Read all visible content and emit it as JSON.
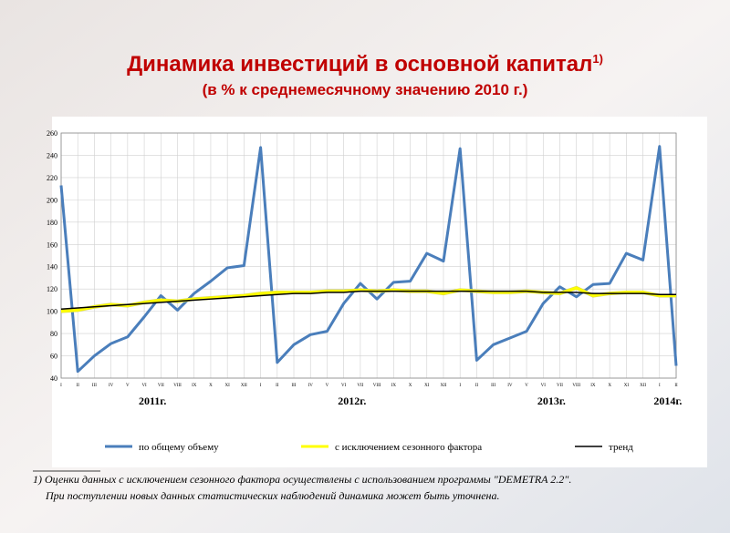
{
  "chart_data": {
    "type": "line",
    "title": "Динамика инвестиций в основной капитал",
    "title_note": "1)",
    "subtitle": "(в % к среднемесячному значению 2010 г.)",
    "categories": [
      "I",
      "II",
      "III",
      "IV",
      "V",
      "VI",
      "VII",
      "VIII",
      "IX",
      "X",
      "XI",
      "XII",
      "I",
      "II",
      "III",
      "IV",
      "V",
      "VI",
      "VII",
      "VIII",
      "IX",
      "X",
      "XI",
      "XII",
      "I",
      "II",
      "III",
      "IV",
      "V",
      "VI",
      "VII",
      "VIII",
      "IX",
      "X",
      "XI",
      "XII",
      "I",
      "II"
    ],
    "years": [
      "2011г.",
      "2012г.",
      "2013г.",
      "2014г."
    ],
    "series": [
      {
        "name": "по общему объему",
        "color": "#4a7ebb",
        "values": [
          213,
          46,
          60,
          71,
          77,
          95,
          114,
          101,
          116,
          127,
          139,
          141,
          247,
          54,
          70,
          79,
          82,
          107,
          125,
          111,
          126,
          127,
          152,
          145,
          246,
          56,
          70,
          76,
          82,
          107,
          122,
          113,
          124,
          125,
          152,
          146,
          248,
          51
        ]
      },
      {
        "name": "с исключением сезонного фактора",
        "color": "#ffff00",
        "values": [
          100,
          101,
          104,
          106,
          105,
          108,
          110,
          109,
          111,
          112,
          113,
          114,
          116,
          117,
          117,
          117,
          118,
          118,
          119,
          118,
          119,
          118,
          118,
          116,
          119,
          118,
          117,
          117,
          118,
          117,
          116,
          121,
          114,
          116,
          117,
          117,
          114,
          114
        ]
      },
      {
        "name": "тренд",
        "color": "#000000",
        "values": [
          102,
          103,
          104,
          105,
          106,
          107,
          108,
          109,
          110,
          111,
          112,
          113,
          114,
          115,
          116,
          116,
          117,
          117,
          118,
          118,
          118,
          118,
          118,
          118,
          118,
          118,
          118,
          118,
          118,
          117,
          117,
          117,
          116,
          116,
          116,
          116,
          115,
          115
        ]
      }
    ],
    "ylim": [
      40,
      260
    ],
    "yticks": [
      40,
      60,
      80,
      100,
      120,
      140,
      160,
      180,
      200,
      220,
      240,
      260
    ],
    "grid": true,
    "footnote": [
      "1) Оценки данных с исключением сезонного фактора осуществлены с использованием программы \"DEMETRA 2.2\".",
      "При поступлении новых данных статистических наблюдений динамика может быть уточнена."
    ]
  }
}
